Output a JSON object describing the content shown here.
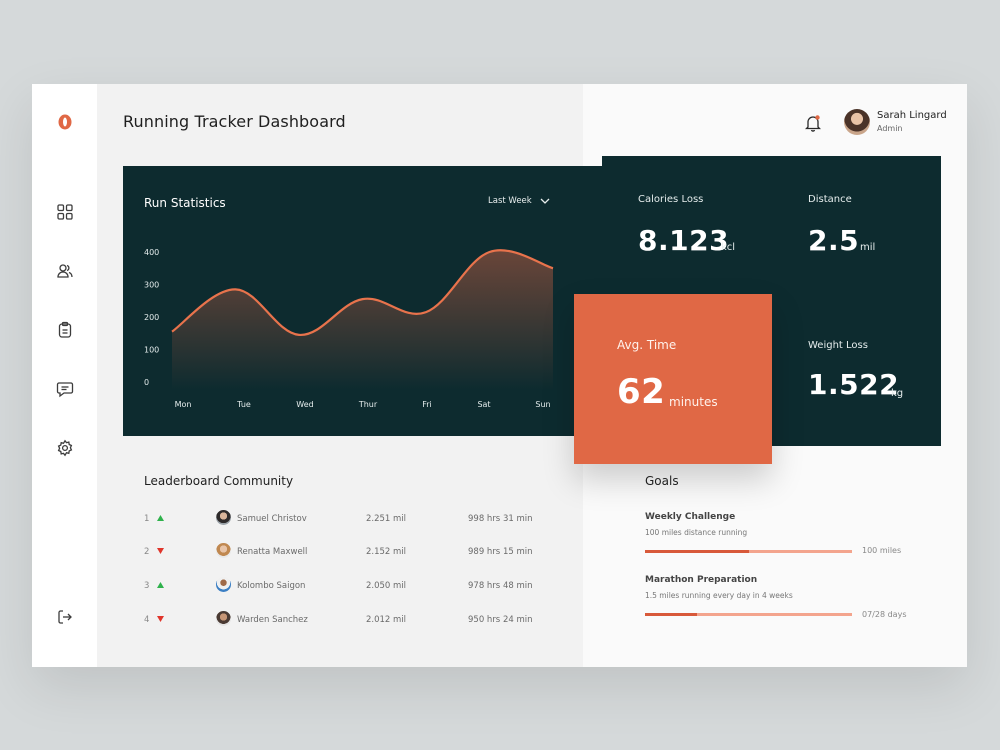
{
  "app": {
    "title": "Running Tracker Dashboard"
  },
  "user": {
    "name": "Sarah Lingard",
    "role": "Admin"
  },
  "sidebar": {
    "items": [
      {
        "name": "dashboard",
        "icon": "grid-icon"
      },
      {
        "name": "users",
        "icon": "users-icon"
      },
      {
        "name": "clipboard",
        "icon": "clipboard-icon"
      },
      {
        "name": "messages",
        "icon": "chat-icon"
      },
      {
        "name": "settings",
        "icon": "gear-icon"
      }
    ],
    "logout_icon": "logout-icon"
  },
  "colors": {
    "accent": "#e06845",
    "dark": "#0d2b2f",
    "line": "#e8734c"
  },
  "run_statistics": {
    "title": "Run Statistics",
    "range": "Last Week"
  },
  "chart_data": {
    "type": "area",
    "categories": [
      "Mon",
      "Tue",
      "Wed",
      "Thur",
      "Fri",
      "Sat",
      "Sun"
    ],
    "values": [
      155,
      285,
      145,
      255,
      215,
      400,
      350
    ],
    "yticks": [
      0,
      100,
      200,
      300,
      400
    ],
    "ylim": [
      0,
      400
    ],
    "title": "Run Statistics",
    "xlabel": "",
    "ylabel": "",
    "grid": false
  },
  "stats": {
    "calories": {
      "label": "Calories Loss",
      "value": "8.123",
      "unit": "kcl"
    },
    "distance": {
      "label": "Distance",
      "value": "2.5",
      "unit": "mil"
    },
    "avg_time": {
      "label": "Avg. Time",
      "value": "62",
      "unit": "minutes"
    },
    "weight": {
      "label": "Weight Loss",
      "value": "1.522",
      "unit": "kg"
    }
  },
  "leaderboard": {
    "title": "Leaderboard Community",
    "rows": [
      {
        "rank": "1",
        "trend": "up",
        "name": "Samuel Christov",
        "distance": "2.251 mil",
        "time": "998 hrs 31 min"
      },
      {
        "rank": "2",
        "trend": "down",
        "name": "Renatta Maxwell",
        "distance": "2.152 mil",
        "time": "989 hrs 15 min"
      },
      {
        "rank": "3",
        "trend": "up",
        "name": "Kolombo Saigon",
        "distance": "2.050 mil",
        "time": "978 hrs 48 min"
      },
      {
        "rank": "4",
        "trend": "down",
        "name": "Warden Sanchez",
        "distance": "2.012 mil",
        "time": "950 hrs 24 min"
      }
    ]
  },
  "goals": {
    "title": "Goals",
    "items": [
      {
        "title": "Weekly Challenge",
        "desc": "100 miles distance running",
        "target": "100 miles",
        "progress": 0.5
      },
      {
        "title": "Marathon Preparation",
        "desc": "1.5 miles running every day in 4 weeks",
        "target": "07/28 days",
        "progress": 0.25
      }
    ]
  }
}
